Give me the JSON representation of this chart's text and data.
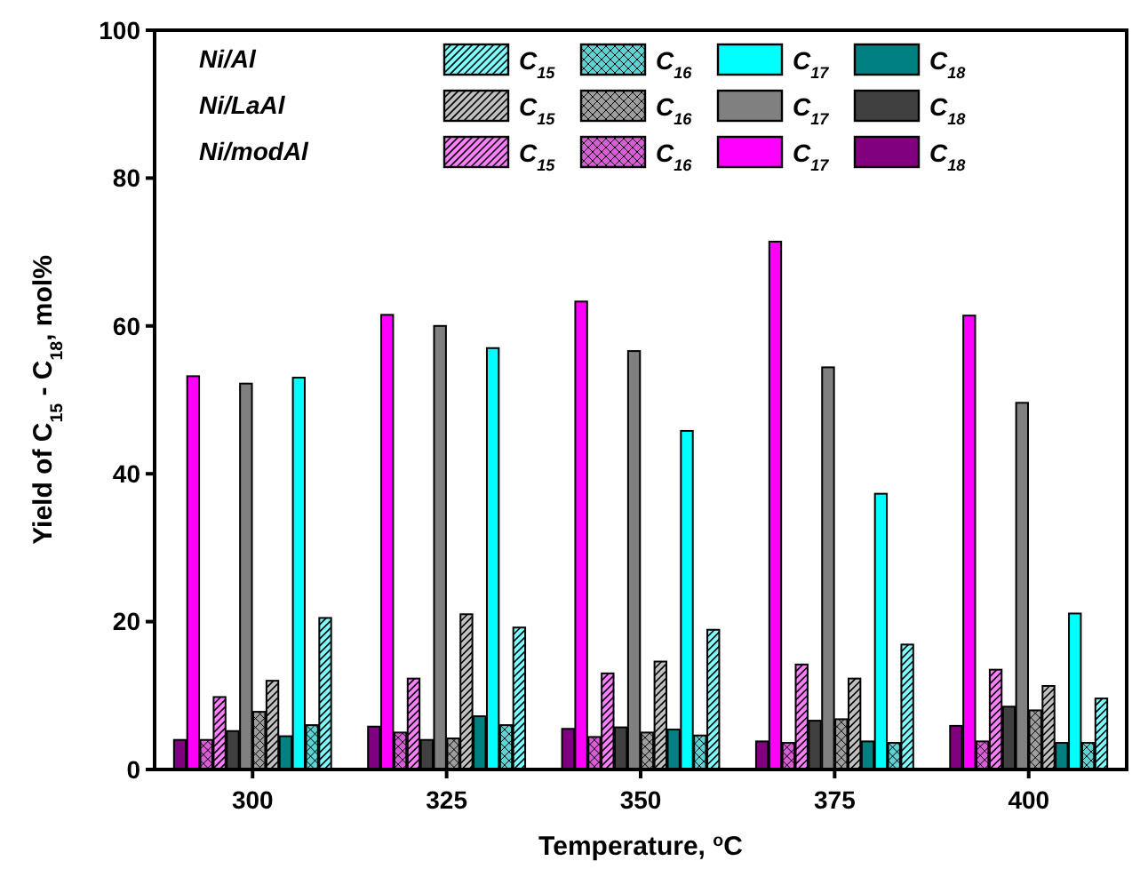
{
  "chart_data": {
    "type": "bar",
    "xlabel": "Temperature, $^{o}$C",
    "ylabel": "Yield of C$_{15}$ - C$_{18}$, mol%",
    "categories": [
      "300",
      "325",
      "350",
      "375",
      "400"
    ],
    "ylim": [
      0,
      100
    ],
    "yticks": [
      0,
      20,
      40,
      60,
      80,
      100
    ],
    "legend": "top",
    "annotations": [
      "Ni/Al",
      "Ni/LaAl",
      "Ni/modAl"
    ],
    "series": [
      {
        "name": "C$_{15}$",
        "color": "#80ffff",
        "values": [
          20.5,
          19.2,
          18.9,
          16.9,
          9.6
        ]
      },
      {
        "name": "C$_{16}$",
        "color": "#5fd3d3",
        "values": [
          6,
          6,
          4.6,
          3.6,
          3.6
        ]
      },
      {
        "name": "C$_{17}$",
        "color": "#00ffff",
        "values": [
          53,
          57,
          45.8,
          37.3,
          21.1
        ]
      },
      {
        "name": "C$_{18}$",
        "color": "#008080",
        "values": [
          4.5,
          7.2,
          5.4,
          3.8,
          3.6
        ]
      },
      {
        "name": "C$_{15}$",
        "color": "#c0c0c0",
        "values": [
          12,
          21,
          14.6,
          12.3,
          11.3
        ]
      },
      {
        "name": "C$_{16}$",
        "color": "#9e9e9e",
        "values": [
          7.8,
          4.2,
          5,
          6.8,
          8
        ]
      },
      {
        "name": "C$_{17}$",
        "color": "#808080",
        "values": [
          52.2,
          60,
          56.6,
          54.4,
          49.6
        ]
      },
      {
        "name": "C$_{18}$",
        "color": "#404040",
        "values": [
          5.2,
          4,
          5.7,
          6.6,
          8.5
        ]
      },
      {
        "name": "C$_{15}$",
        "color": "#ff80ff",
        "values": [
          9.8,
          12.3,
          13,
          14.2,
          13.5
        ]
      },
      {
        "name": "C$_{16}$",
        "color": "#d65fd6",
        "values": [
          4,
          5,
          4.4,
          3.6,
          3.8
        ]
      },
      {
        "name": "C$_{17}$",
        "color": "#ff00ff",
        "values": [
          53.2,
          61.5,
          63.3,
          71.4,
          61.4
        ]
      },
      {
        "name": "C$_{18}$",
        "color": "#800080",
        "values": [
          4,
          5.8,
          5.5,
          3.8,
          5.9
        ]
      }
    ]
  }
}
